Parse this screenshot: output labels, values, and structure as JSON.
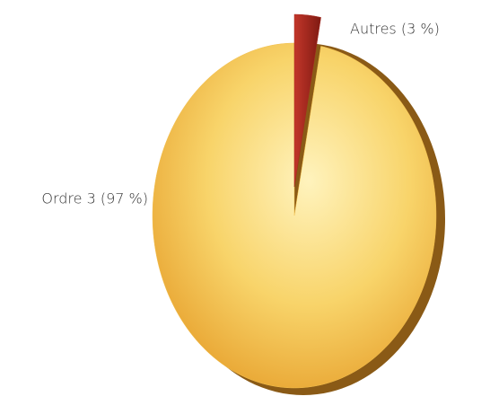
{
  "chart_data": {
    "type": "pie",
    "values": [
      3,
      97
    ],
    "value_labels": [
      "Autres (3 %)",
      "Ordre 3 (97 %)"
    ],
    "colors": [
      "#a8281e",
      "#f3c04e"
    ]
  }
}
